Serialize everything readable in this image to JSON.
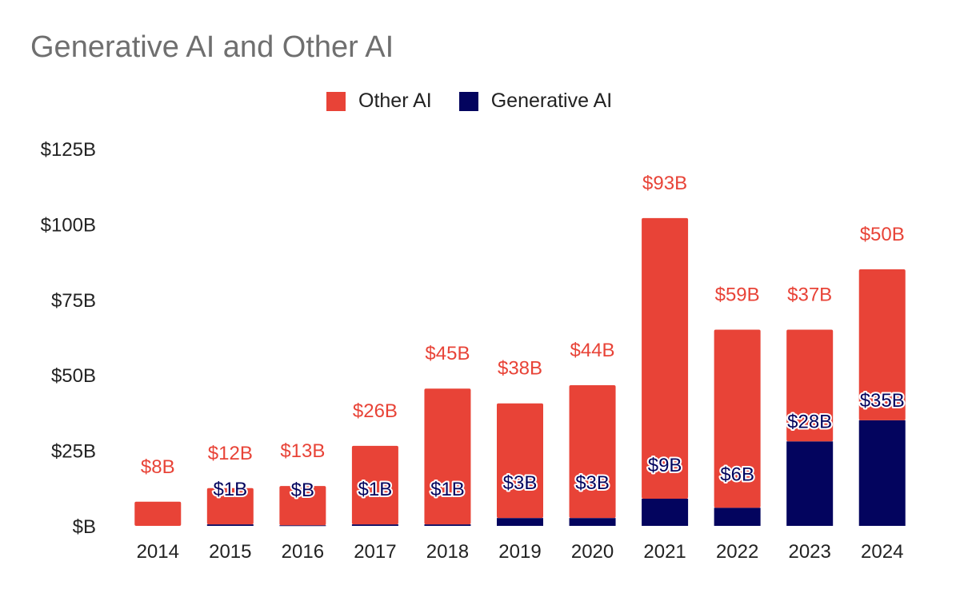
{
  "chart_data": {
    "type": "bar",
    "stacked": true,
    "title": "Generative AI and Other AI",
    "categories": [
      "2014",
      "2015",
      "2016",
      "2017",
      "2018",
      "2019",
      "2020",
      "2021",
      "2022",
      "2023",
      "2024"
    ],
    "series": [
      {
        "name": "Generative AI",
        "color": "#03045e",
        "values": [
          0,
          0.5,
          0.2,
          0.5,
          0.5,
          2.6,
          2.6,
          9,
          6,
          28,
          35
        ],
        "labels": [
          "",
          "$1B",
          "$B",
          "$1B",
          "$1B",
          "$3B",
          "$3B",
          "$9B",
          "$6B",
          "$28B",
          "$35B"
        ]
      },
      {
        "name": "Other AI",
        "color": "#e84337",
        "values": [
          8,
          12,
          13,
          26,
          45,
          38,
          44,
          93,
          59,
          37,
          50
        ],
        "labels": [
          "$8B",
          "$12B",
          "$13B",
          "$26B",
          "$45B",
          "$38B",
          "$44B",
          "$93B",
          "$59B",
          "$37B",
          "$50B"
        ]
      }
    ],
    "y_ticks": [
      "$B",
      "$25B",
      "$50B",
      "$75B",
      "$100B",
      "$125B"
    ],
    "y_tick_values": [
      0,
      25,
      50,
      75,
      100,
      125
    ],
    "ylim": [
      0,
      125
    ],
    "grid": false,
    "legend_position": "top-center"
  },
  "legend": [
    {
      "label": "Other AI",
      "color": "#e84337"
    },
    {
      "label": "Generative AI",
      "color": "#03045e"
    }
  ]
}
